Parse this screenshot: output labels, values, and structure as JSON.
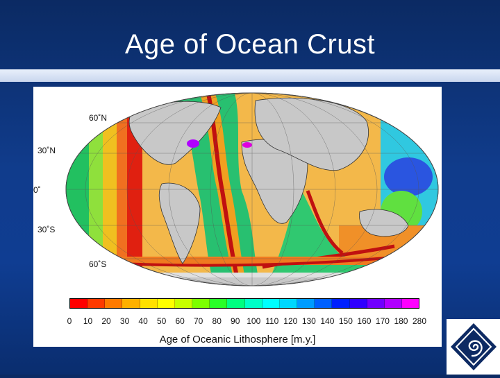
{
  "slide": {
    "title": "Age of Ocean Crust"
  },
  "map": {
    "latitude_labels": [
      "60˚N",
      "30˚N",
      "0˚",
      "30˚S",
      "60˚S"
    ]
  },
  "colorbar": {
    "ticks": [
      "0",
      "10",
      "20",
      "30",
      "40",
      "50",
      "60",
      "70",
      "80",
      "90",
      "100",
      "110",
      "120",
      "130",
      "140",
      "150",
      "160",
      "170",
      "180",
      "280"
    ],
    "colors": [
      "#ff0000",
      "#ff3a00",
      "#ff7a00",
      "#ffb000",
      "#ffe000",
      "#ffff00",
      "#c8ff00",
      "#7cff00",
      "#28ff28",
      "#00ff80",
      "#00ffc8",
      "#00ffff",
      "#00d8ff",
      "#009cff",
      "#0060ff",
      "#0020ff",
      "#3000ff",
      "#7000ff",
      "#b000ff",
      "#ff00ff"
    ],
    "label": "Age of Oceanic Lithosphere [m.y.]"
  },
  "logo": {
    "icon": "spiral-diamond-icon",
    "color": "#0d2a63"
  }
}
